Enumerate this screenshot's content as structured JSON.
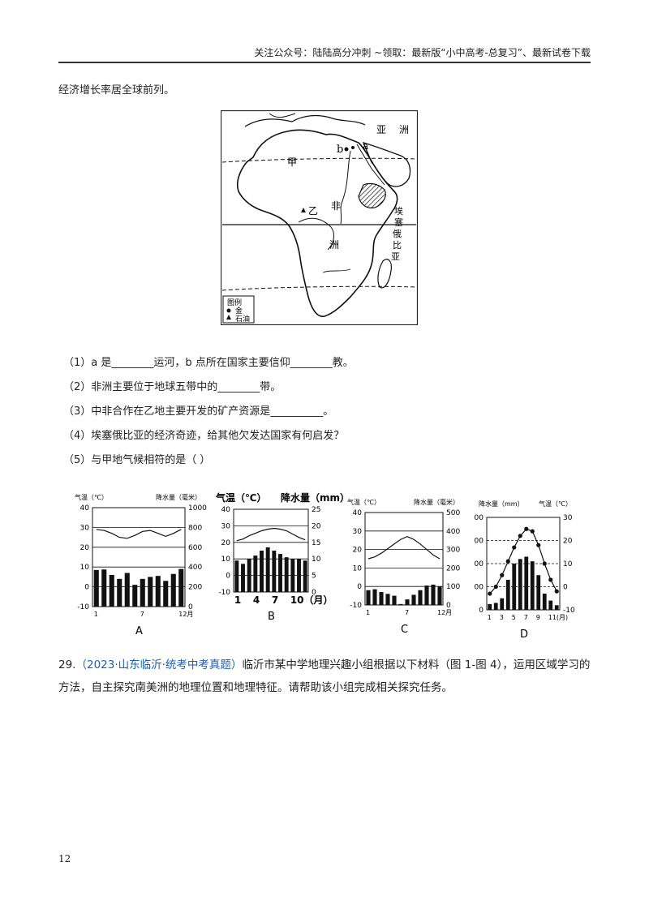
{
  "header": {
    "text": "关注公众号：陆陆高分冲刺 ~领取：最新版“小中高考-总复习”、最新试卷下载"
  },
  "intro": "经济增长率居全球前列。",
  "map": {
    "labels": {
      "asia_1": "亚",
      "asia_2": "洲",
      "point_a": "a",
      "point_b": "b",
      "jia": "甲",
      "fei": "非",
      "zhou": "洲",
      "yi": "乙",
      "ethiopia_1": "埃",
      "ethiopia_2": "塞",
      "ethiopia_3": "俄",
      "ethiopia_4": "比",
      "ethiopia_5": "亚"
    },
    "legend": {
      "title": "图例",
      "gold": "金",
      "oil": "石油"
    }
  },
  "questions": [
    {
      "text": "（1）a 是________运河，b 点所在国家主要信仰________教。"
    },
    {
      "text": "（2）非洲主要位于地球五带中的________带。"
    },
    {
      "text": "（3）中非合作在乙地主要开发的矿产资源是__________。"
    },
    {
      "text": "（4）埃塞俄比亚的经济奇迹，给其他欠发达国家有何启发？"
    },
    {
      "text": "（5）与甲地气候相符的是（   ）"
    }
  ],
  "chart_data": [
    {
      "type": "bar",
      "label": "A",
      "temp_axis_title": "气温（℃）",
      "precip_axis_title": "降水量（毫米）",
      "temp_ticks": [
        "40",
        "30",
        "20",
        "10",
        "0",
        "-10"
      ],
      "precip_ticks": [
        "1000",
        "800",
        "600",
        "400",
        "200",
        "0"
      ],
      "temp_range": [
        -10,
        40
      ],
      "precip_range": [
        0,
        1000
      ],
      "x_tick_labels": [
        "1",
        "7",
        "12月"
      ],
      "months": [
        1,
        2,
        3,
        4,
        5,
        6,
        7,
        8,
        9,
        10,
        11,
        12
      ],
      "temperature": [
        29,
        28.5,
        27,
        25,
        24.5,
        26,
        28,
        28.5,
        27,
        25.5,
        27,
        29
      ],
      "precipitation": [
        370,
        375,
        320,
        280,
        340,
        220,
        280,
        300,
        310,
        260,
        330,
        380
      ]
    },
    {
      "type": "bar",
      "label": "B",
      "temp_axis_title": "气温（℃）",
      "precip_axis_title": "降水量（mm）",
      "temp_ticks": [
        "40",
        "30",
        "20",
        "10",
        "0",
        "-10"
      ],
      "precip_ticks": [
        "25",
        "20",
        "15",
        "10",
        "5",
        "0"
      ],
      "temp_range": [
        -10,
        40
      ],
      "precip_range": [
        0,
        25
      ],
      "x_tick_labels": [
        "1",
        "4",
        "7",
        "10（月）"
      ],
      "months": [
        1,
        2,
        3,
        4,
        5,
        6,
        7,
        8,
        9,
        10,
        11,
        12
      ],
      "temperature": [
        21,
        22,
        24,
        25.5,
        27,
        28,
        28.5,
        28,
        27,
        25,
        23,
        21.5
      ],
      "precipitation": [
        9.5,
        8.5,
        10,
        11,
        12.5,
        13.5,
        12.5,
        11.5,
        10.5,
        10,
        10,
        9.5
      ]
    },
    {
      "type": "bar",
      "label": "C",
      "temp_axis_title": "气温（℃）",
      "precip_axis_title": "降水量（毫米）",
      "temp_ticks": [
        "40",
        "30",
        "20",
        "10",
        "0",
        "-10"
      ],
      "precip_ticks": [
        "500",
        "400",
        "300",
        "200",
        "100",
        "0"
      ],
      "temp_range": [
        -10,
        40
      ],
      "precip_range": [
        0,
        500
      ],
      "x_tick_labels": [
        "1",
        "7",
        "12月"
      ],
      "months": [
        1,
        2,
        3,
        4,
        5,
        6,
        7,
        8,
        9,
        10,
        11,
        12
      ],
      "temperature": [
        15,
        16,
        18,
        20.5,
        23,
        25.5,
        27,
        25.5,
        23,
        20,
        17,
        15
      ],
      "precipitation": [
        80,
        85,
        70,
        60,
        50,
        5,
        30,
        55,
        80,
        105,
        110,
        100
      ]
    },
    {
      "type": "bar",
      "label": "D",
      "temp_axis_title": "气温（℃）",
      "precip_axis_title": "降水量（mm）",
      "temp_ticks": [
        "30",
        "20",
        "10",
        "0",
        "-10"
      ],
      "precip_ticks": [
        "400",
        "300",
        "200",
        "100",
        "0"
      ],
      "temp_range": [
        -10,
        30
      ],
      "precip_range": [
        0,
        400
      ],
      "x_tick_labels": [
        "1",
        "3",
        "5",
        "7",
        "9",
        "11(月)"
      ],
      "months": [
        1,
        2,
        3,
        4,
        5,
        6,
        7,
        8,
        9,
        10,
        11,
        12
      ],
      "temperature": [
        -3,
        0,
        5,
        11,
        17,
        22,
        25,
        24,
        18,
        10,
        3,
        -2
      ],
      "precipitation": [
        25,
        30,
        50,
        130,
        200,
        220,
        230,
        210,
        150,
        70,
        40,
        20
      ]
    }
  ],
  "q29": {
    "number": "29.",
    "source": "（2023·山东临沂·统考中考真题）",
    "text": "临沂市某中学地理兴趣小组根据以下材料（图 1-图 4），运用区域学习的方法，自主探究南美洲的地理位置和地理特征。请帮助该小组完成相关探究任务。"
  },
  "page_number": "12"
}
